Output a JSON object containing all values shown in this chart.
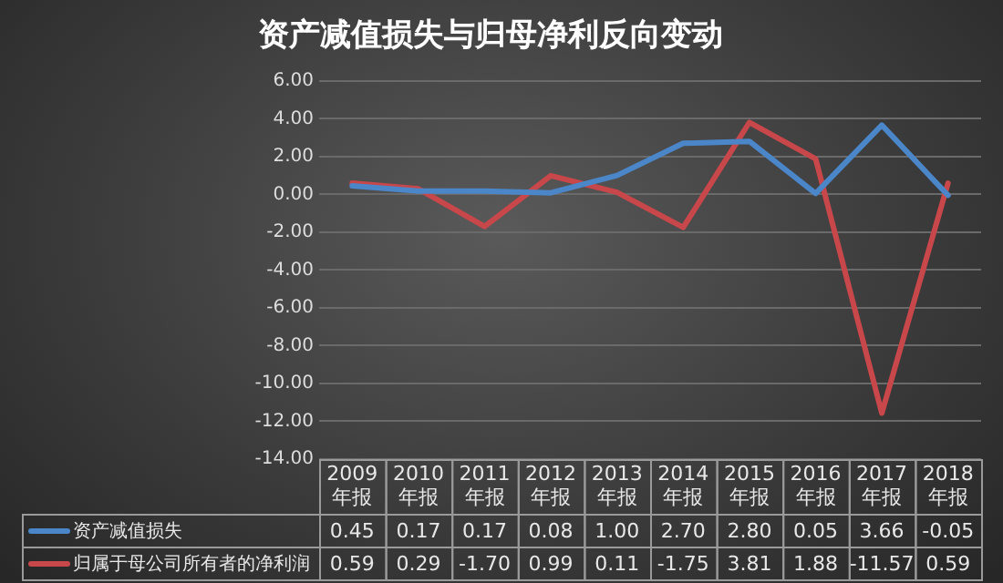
{
  "chart_data": {
    "type": "line",
    "title": "资产减值损失与归母净利反向变动",
    "categories": [
      "2009 年报",
      "2010 年报",
      "2011 年报",
      "2012 年报",
      "2013 年报",
      "2014 年报",
      "2015 年报",
      "2016 年报",
      "2017 年报",
      "2018 年报"
    ],
    "series": [
      {
        "name": "资产减值损失",
        "color": "#4a86c8",
        "values": [
          0.45,
          0.17,
          0.17,
          0.08,
          1.0,
          2.7,
          2.8,
          0.05,
          3.66,
          -0.05
        ],
        "value_labels": [
          "0.45",
          "0.17",
          "0.17",
          "0.08",
          "1.00",
          "2.70",
          "2.80",
          "0.05",
          "3.66",
          "-0.05"
        ]
      },
      {
        "name": "归属于母公司所有者的净利润",
        "color": "#c8474a",
        "values": [
          0.59,
          0.29,
          -1.7,
          0.99,
          0.11,
          -1.75,
          3.81,
          1.88,
          -11.57,
          0.59
        ],
        "value_labels": [
          "0.59",
          "0.29",
          "-1.70",
          "0.99",
          "0.11",
          "-1.75",
          "3.81",
          "1.88",
          "-11.57",
          "0.59"
        ]
      }
    ],
    "ylim": [
      -14,
      6
    ],
    "yticks": [
      {
        "value": -14,
        "label": "-14.00"
      },
      {
        "value": -12,
        "label": "-12.00"
      },
      {
        "value": -10,
        "label": "-10.00"
      },
      {
        "value": -8,
        "label": "-8.00"
      },
      {
        "value": -6,
        "label": "-6.00"
      },
      {
        "value": -4,
        "label": "-4.00"
      },
      {
        "value": -2,
        "label": "-2.00"
      },
      {
        "value": 0,
        "label": "0.00"
      },
      {
        "value": 2,
        "label": "2.00"
      },
      {
        "value": 4,
        "label": "4.00"
      },
      {
        "value": 6,
        "label": "6.00"
      }
    ],
    "grid": "y",
    "legend": "bottom",
    "marker": "none",
    "line_style": "solid"
  }
}
